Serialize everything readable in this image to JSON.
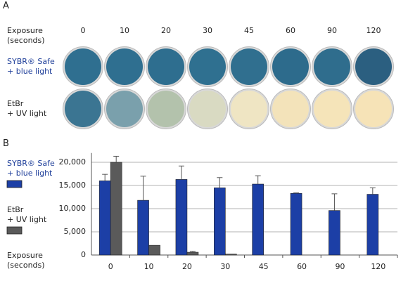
{
  "panel_a": {
    "label": "A",
    "header": "Exposure\n(seconds)",
    "columns": [
      "0",
      "10",
      "20",
      "30",
      "45",
      "60",
      "90",
      "120"
    ],
    "rows": [
      {
        "label": "SYBR® Safe\n+ blue light",
        "dish_colors": [
          "#2f6f90",
          "#2f6f90",
          "#2e6e8f",
          "#2f7090",
          "#306f8f",
          "#2d6b8c",
          "#2f6d8d",
          "#2b5f80"
        ]
      },
      {
        "label": "EtBr\n+ UV light",
        "dish_colors": [
          "#3b7592",
          "#7aa0ac",
          "#b3c2ac",
          "#d9dac2",
          "#efe5c3",
          "#f3e3ba",
          "#f5e4b9",
          "#f6e3b7"
        ]
      }
    ]
  },
  "chart_data": {
    "type": "bar",
    "panel_label": "B",
    "x_label": "Exposure\n(seconds)",
    "categories": [
      "0",
      "10",
      "20",
      "30",
      "45",
      "60",
      "90",
      "120"
    ],
    "series": [
      {
        "name": "SYBR® Safe\n+ blue light",
        "color": "#1c3fa6",
        "values": [
          16000,
          11800,
          16300,
          14500,
          15300,
          13300,
          9600,
          13100
        ],
        "errors": [
          1400,
          5200,
          2900,
          2200,
          1800,
          100,
          3600,
          1400
        ]
      },
      {
        "name": "EtBr\n+ UV light",
        "color": "#5a5a5a",
        "values": [
          20000,
          2100,
          600,
          200,
          null,
          null,
          null,
          null
        ],
        "errors": [
          1300,
          null,
          200,
          null,
          null,
          null,
          null,
          null
        ]
      }
    ],
    "ylim": [
      0,
      22000
    ],
    "yticks": [
      0,
      {
        "value": 5000,
        "label": "5,000"
      },
      {
        "value": 10000,
        "label": "10,000"
      },
      {
        "value": 15000,
        "label": "15,000"
      },
      {
        "value": 20000,
        "label": "20,000"
      }
    ],
    "grid": true
  }
}
